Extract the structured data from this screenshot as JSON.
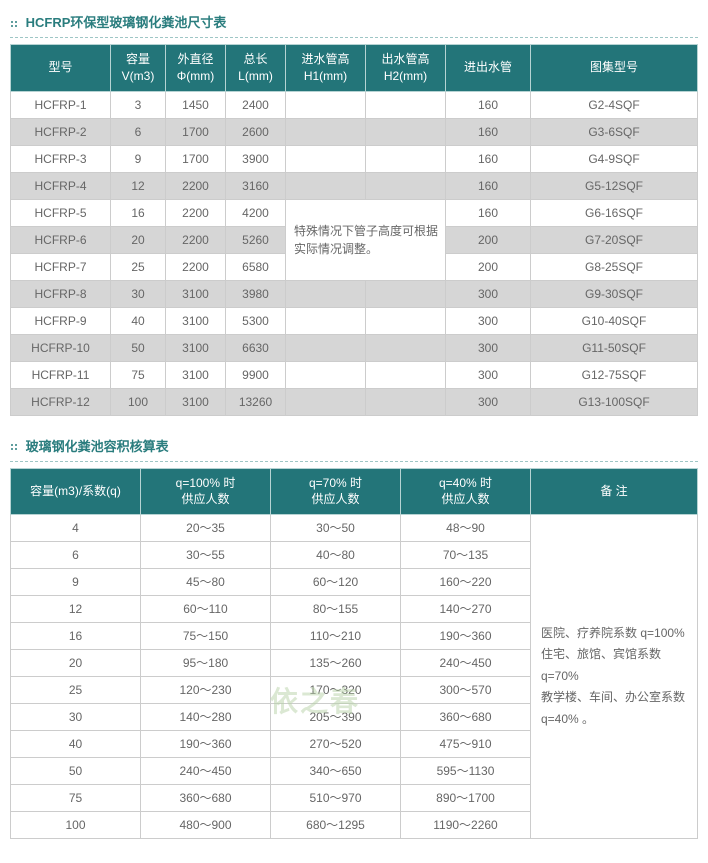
{
  "colors": {
    "header_bg": "#237579",
    "header_fg": "#ffffff",
    "title_color": "#2a7d7e",
    "row_odd_bg": "#d6d6d6",
    "row_even_bg": "#ffffff",
    "border": "#cccccc",
    "text": "#666666"
  },
  "table1": {
    "title": "HCFRP环保型玻璃钢化粪池尺寸表",
    "headers": {
      "c1": "型号",
      "c2": "容量\nV(m3)",
      "c3": "外直径\nΦ(mm)",
      "c4": "总长\nL(mm)",
      "c5": "进水管高\nH1(mm)",
      "c6": "出水管高\nH2(mm)",
      "c7": "进出水管",
      "c8": "图集型号"
    },
    "merged_note": "特殊情况下管子高度可根据实际情况调整。",
    "rows": [
      {
        "model": "HCFRP-1",
        "vol": "3",
        "dia": "1450",
        "len": "2400",
        "pipe": "160",
        "atlas": "G2-4SQF"
      },
      {
        "model": "HCFRP-2",
        "vol": "6",
        "dia": "1700",
        "len": "2600",
        "pipe": "160",
        "atlas": "G3-6SQF"
      },
      {
        "model": "HCFRP-3",
        "vol": "9",
        "dia": "1700",
        "len": "3900",
        "pipe": "160",
        "atlas": "G4-9SQF"
      },
      {
        "model": "HCFRP-4",
        "vol": "12",
        "dia": "2200",
        "len": "3160",
        "pipe": "160",
        "atlas": "G5-12SQF"
      },
      {
        "model": "HCFRP-5",
        "vol": "16",
        "dia": "2200",
        "len": "4200",
        "pipe": "160",
        "atlas": "G6-16SQF"
      },
      {
        "model": "HCFRP-6",
        "vol": "20",
        "dia": "2200",
        "len": "5260",
        "pipe": "200",
        "atlas": "G7-20SQF"
      },
      {
        "model": "HCFRP-7",
        "vol": "25",
        "dia": "2200",
        "len": "6580",
        "pipe": "200",
        "atlas": "G8-25SQF"
      },
      {
        "model": "HCFRP-8",
        "vol": "30",
        "dia": "3100",
        "len": "3980",
        "pipe": "300",
        "atlas": "G9-30SQF"
      },
      {
        "model": "HCFRP-9",
        "vol": "40",
        "dia": "3100",
        "len": "5300",
        "pipe": "300",
        "atlas": "G10-40SQF"
      },
      {
        "model": "HCFRP-10",
        "vol": "50",
        "dia": "3100",
        "len": "6630",
        "pipe": "300",
        "atlas": "G11-50SQF"
      },
      {
        "model": "HCFRP-11",
        "vol": "75",
        "dia": "3100",
        "len": "9900",
        "pipe": "300",
        "atlas": "G12-75SQF"
      },
      {
        "model": "HCFRP-12",
        "vol": "100",
        "dia": "3100",
        "len": "13260",
        "pipe": "300",
        "atlas": "G13-100SQF"
      }
    ]
  },
  "table2": {
    "title": "玻璃钢化粪池容积核算表",
    "headers": {
      "c1": "容量(m3)/系数(q)",
      "c2": "q=100% 时\n供应人数",
      "c3": "q=70% 时\n供应人数",
      "c4": "q=40% 时\n供应人数",
      "c5": "备 注"
    },
    "note": "医院、疗养院系数 q=100%\n住宅、旅馆、宾馆系数 q=70%\n教学楼、车间、办公室系数\nq=40% 。",
    "rows": [
      {
        "vol": "4",
        "q100": "20～35",
        "q70": "30～50",
        "q40": "48～90"
      },
      {
        "vol": "6",
        "q100": "30～55",
        "q70": "40～80",
        "q40": "70～135"
      },
      {
        "vol": "9",
        "q100": "45～80",
        "q70": "60～120",
        "q40": "160～220"
      },
      {
        "vol": "12",
        "q100": "60～110",
        "q70": "80～155",
        "q40": "140～270"
      },
      {
        "vol": "16",
        "q100": "75～150",
        "q70": "110～210",
        "q40": "190～360"
      },
      {
        "vol": "20",
        "q100": "95～180",
        "q70": "135～260",
        "q40": "240～450"
      },
      {
        "vol": "25",
        "q100": "120～230",
        "q70": "170～320",
        "q40": "300～570"
      },
      {
        "vol": "30",
        "q100": "140～280",
        "q70": "205～390",
        "q40": "360～680"
      },
      {
        "vol": "40",
        "q100": "190～360",
        "q70": "270～520",
        "q40": "475～910"
      },
      {
        "vol": "50",
        "q100": "240～450",
        "q70": "340～650",
        "q40": "595～1130"
      },
      {
        "vol": "75",
        "q100": "360～680",
        "q70": "510～970",
        "q40": "890～1700"
      },
      {
        "vol": "100",
        "q100": "480～900",
        "q70": "680～1295",
        "q40": "1190～2260"
      }
    ]
  },
  "watermark": "依之春"
}
